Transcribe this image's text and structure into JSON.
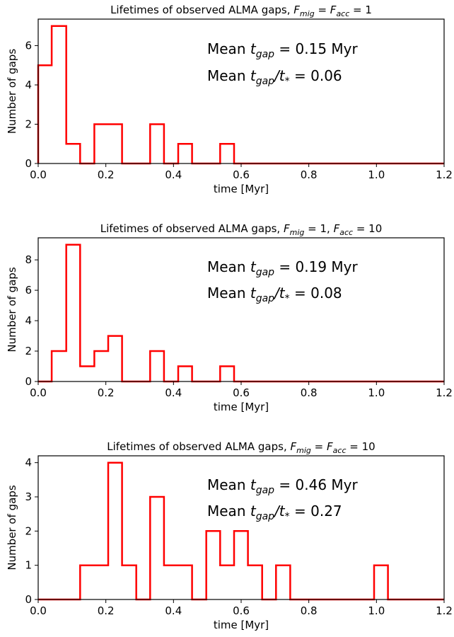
{
  "chart_data": [
    {
      "type": "histogram",
      "title": "Lifetimes of observed ALMA gaps, $F_{mig}=F_{acc}=1$",
      "title_parts": {
        "prefix": "Lifetimes of observed ALMA gaps, ",
        "F": "F",
        "mig": "mig",
        "eq1": " = ",
        "acc": "acc",
        "value": " = 1"
      },
      "xlabel": "time [Myr]",
      "ylabel": "Number of gaps",
      "xlim": [
        0,
        1.2
      ],
      "ylim": [
        0,
        7.35
      ],
      "xticks": [
        0.0,
        0.2,
        0.4,
        0.6,
        0.8,
        1.0,
        1.2
      ],
      "xtick_labels": [
        "0.0",
        "0.2",
        "0.4",
        "0.6",
        "0.8",
        "1.0",
        "1.2"
      ],
      "yticks": [
        0,
        2,
        4,
        6
      ],
      "ytick_labels": [
        "0",
        "2",
        "4",
        "6"
      ],
      "bin_edges": [
        0.0,
        0.04,
        0.083,
        0.124,
        0.166,
        0.207,
        0.248,
        0.29,
        0.331,
        0.372,
        0.414,
        0.455,
        0.497,
        0.538,
        0.579,
        0.62,
        0.662,
        0.703,
        0.745,
        0.786,
        0.827,
        0.869,
        0.91,
        0.952,
        0.993,
        1.034,
        1.076,
        1.117,
        1.159,
        1.2
      ],
      "counts": [
        5,
        7,
        1,
        0,
        2,
        2,
        0,
        0,
        2,
        0,
        1,
        0,
        0,
        1,
        0,
        0,
        0,
        0,
        0,
        0,
        0,
        0,
        0,
        0,
        0,
        0,
        0,
        0,
        0
      ],
      "line_color": "#ff0000",
      "annotation1": {
        "prefix": "Mean ",
        "t": "t",
        "sub": "gap",
        "value": " = 0.15 Myr"
      },
      "annotation2": {
        "prefix": "Mean ",
        "t": "t",
        "sub": "gap",
        "slash": "/t",
        "star": "*",
        "value": " = 0.06"
      }
    },
    {
      "type": "histogram",
      "title": "Lifetimes of observed ALMA gaps, $F_{mig}=1, F_{acc}=10$",
      "title_parts": {
        "prefix": "Lifetimes of observed ALMA gaps, ",
        "F": "F",
        "mig": "mig",
        "eq1": " = 1, ",
        "acc": "acc",
        "value": " = 10"
      },
      "xlabel": "time [Myr]",
      "ylabel": "Number of gaps",
      "xlim": [
        0,
        1.2
      ],
      "ylim": [
        0,
        9.45
      ],
      "xticks": [
        0.0,
        0.2,
        0.4,
        0.6,
        0.8,
        1.0,
        1.2
      ],
      "xtick_labels": [
        "0.0",
        "0.2",
        "0.4",
        "0.6",
        "0.8",
        "1.0",
        "1.2"
      ],
      "yticks": [
        0,
        2,
        4,
        6,
        8
      ],
      "ytick_labels": [
        "0",
        "2",
        "4",
        "6",
        "8"
      ],
      "bin_edges": [
        0.0,
        0.04,
        0.083,
        0.124,
        0.166,
        0.207,
        0.248,
        0.29,
        0.331,
        0.372,
        0.414,
        0.455,
        0.497,
        0.538,
        0.579,
        0.62,
        0.662,
        0.703,
        0.745,
        0.786,
        0.827,
        0.869,
        0.91,
        0.952,
        0.993,
        1.034,
        1.076,
        1.117,
        1.159,
        1.2
      ],
      "counts": [
        0,
        2,
        9,
        1,
        2,
        3,
        0,
        0,
        2,
        0,
        1,
        0,
        0,
        1,
        0,
        0,
        0,
        0,
        0,
        0,
        0,
        0,
        0,
        0,
        0,
        0,
        0,
        0,
        0
      ],
      "line_color": "#ff0000",
      "annotation1": {
        "prefix": "Mean ",
        "t": "t",
        "sub": "gap",
        "value": " = 0.19 Myr"
      },
      "annotation2": {
        "prefix": "Mean ",
        "t": "t",
        "sub": "gap",
        "slash": "/t",
        "star": "*",
        "value": " = 0.08"
      }
    },
    {
      "type": "histogram",
      "title": "Lifetimes of observed ALMA gaps, $F_{mig}=F_{acc}=10$",
      "title_parts": {
        "prefix": "Lifetimes of observed ALMA gaps, ",
        "F": "F",
        "mig": "mig",
        "eq1": " = ",
        "acc": "acc",
        "value": " = 10"
      },
      "xlabel": "time [Myr]",
      "ylabel": "Number of gaps",
      "xlim": [
        0,
        1.2
      ],
      "ylim": [
        0,
        4.2
      ],
      "xticks": [
        0.0,
        0.2,
        0.4,
        0.6,
        0.8,
        1.0,
        1.2
      ],
      "xtick_labels": [
        "0.0",
        "0.2",
        "0.4",
        "0.6",
        "0.8",
        "1.0",
        "1.2"
      ],
      "yticks": [
        0,
        1,
        2,
        3,
        4
      ],
      "ytick_labels": [
        "0",
        "1",
        "2",
        "3",
        "4"
      ],
      "bin_edges": [
        0.0,
        0.04,
        0.083,
        0.124,
        0.166,
        0.207,
        0.248,
        0.29,
        0.331,
        0.372,
        0.414,
        0.455,
        0.497,
        0.538,
        0.579,
        0.62,
        0.662,
        0.703,
        0.745,
        0.786,
        0.827,
        0.869,
        0.91,
        0.952,
        0.993,
        1.034,
        1.076,
        1.117,
        1.159,
        1.2
      ],
      "counts": [
        0,
        0,
        0,
        1,
        1,
        4,
        1,
        0,
        3,
        1,
        1,
        0,
        2,
        1,
        2,
        1,
        0,
        1,
        0,
        0,
        0,
        0,
        0,
        0,
        1,
        0,
        0,
        0,
        0
      ],
      "line_color": "#ff0000",
      "annotation1": {
        "prefix": "Mean ",
        "t": "t",
        "sub": "gap",
        "value": " = 0.46 Myr"
      },
      "annotation2": {
        "prefix": "Mean ",
        "t": "t",
        "sub": "gap",
        "slash": "/t",
        "star": "*",
        "value": " = 0.27"
      }
    }
  ]
}
